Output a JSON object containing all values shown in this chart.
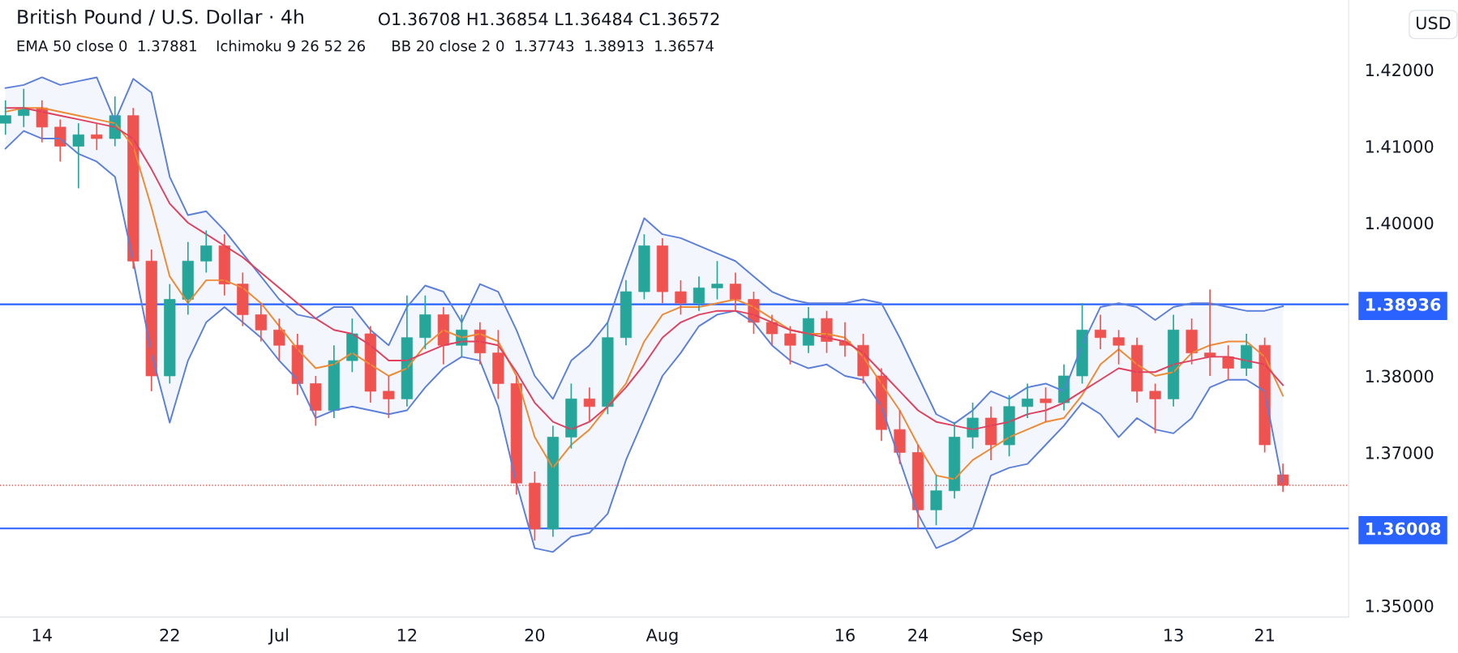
{
  "chart_data": {
    "type": "candlestick",
    "title": "British Pound / U.S. Dollar · 4h",
    "annotations": [
      "O1.36708 H1.36854 L1.36484 C1.36572",
      "EMA 50 close 0  1.37881",
      "Ichimoku 9 26 52 26",
      "BB 20 close 2 0  1.37743  1.38913  1.36574",
      "USD"
    ],
    "categories": [
      null,
      null,
      "14",
      null,
      null,
      null,
      null,
      null,
      null,
      "22",
      null,
      null,
      null,
      null,
      null,
      "Jul",
      null,
      null,
      null,
      null,
      null,
      null,
      "12",
      null,
      null,
      null,
      null,
      null,
      null,
      "20",
      null,
      null,
      null,
      null,
      null,
      null,
      "Aug",
      null,
      null,
      null,
      null,
      null,
      null,
      null,
      null,
      null,
      "16",
      null,
      null,
      null,
      "24",
      null,
      null,
      null,
      null,
      null,
      "Sep",
      null,
      null,
      null,
      null,
      null,
      null,
      null,
      "13",
      null,
      null,
      null,
      null,
      "21",
      null
    ],
    "ohlc": [
      [
        1.413,
        1.416,
        1.4115,
        1.414
      ],
      [
        1.414,
        1.4175,
        1.4125,
        1.415
      ],
      [
        1.415,
        1.416,
        1.4105,
        1.4125
      ],
      [
        1.4125,
        1.4135,
        1.408,
        1.41
      ],
      [
        1.41,
        1.413,
        1.4045,
        1.4115
      ],
      [
        1.4115,
        1.413,
        1.4095,
        1.411
      ],
      [
        1.411,
        1.4165,
        1.41,
        1.414
      ],
      [
        1.414,
        1.415,
        1.394,
        1.395
      ],
      [
        1.395,
        1.3965,
        1.378,
        1.38
      ],
      [
        1.38,
        1.392,
        1.379,
        1.39
      ],
      [
        1.39,
        1.3975,
        1.388,
        1.395
      ],
      [
        1.395,
        1.399,
        1.3935,
        1.397
      ],
      [
        1.397,
        1.3985,
        1.3905,
        1.392
      ],
      [
        1.392,
        1.3935,
        1.3865,
        1.388
      ],
      [
        1.388,
        1.3895,
        1.3845,
        1.386
      ],
      [
        1.386,
        1.3875,
        1.382,
        1.384
      ],
      [
        1.384,
        1.3855,
        1.3775,
        1.379
      ],
      [
        1.379,
        1.38,
        1.3735,
        1.3755
      ],
      [
        1.3755,
        1.384,
        1.3745,
        1.382
      ],
      [
        1.382,
        1.3875,
        1.3805,
        1.3855
      ],
      [
        1.3855,
        1.3865,
        1.3765,
        1.378
      ],
      [
        1.378,
        1.38,
        1.3745,
        1.377
      ],
      [
        1.377,
        1.3905,
        1.376,
        1.385
      ],
      [
        1.385,
        1.3905,
        1.3835,
        1.388
      ],
      [
        1.388,
        1.389,
        1.3815,
        1.384
      ],
      [
        1.384,
        1.388,
        1.3825,
        1.386
      ],
      [
        1.386,
        1.387,
        1.3815,
        1.383
      ],
      [
        1.383,
        1.386,
        1.377,
        1.379
      ],
      [
        1.379,
        1.38,
        1.3645,
        1.366
      ],
      [
        1.366,
        1.3675,
        1.3585,
        1.36
      ],
      [
        1.36,
        1.3735,
        1.359,
        1.372
      ],
      [
        1.372,
        1.379,
        1.3705,
        1.377
      ],
      [
        1.377,
        1.3785,
        1.374,
        1.376
      ],
      [
        1.376,
        1.387,
        1.375,
        1.385
      ],
      [
        1.385,
        1.3925,
        1.384,
        1.391
      ],
      [
        1.391,
        1.3985,
        1.39,
        1.397
      ],
      [
        1.397,
        1.398,
        1.3895,
        1.391
      ],
      [
        1.391,
        1.3925,
        1.388,
        1.3895
      ],
      [
        1.3895,
        1.393,
        1.3885,
        1.3915
      ],
      [
        1.3915,
        1.395,
        1.39,
        1.392
      ],
      [
        1.392,
        1.3935,
        1.3885,
        1.39
      ],
      [
        1.39,
        1.391,
        1.3855,
        1.387
      ],
      [
        1.387,
        1.388,
        1.384,
        1.3855
      ],
      [
        1.3855,
        1.3865,
        1.3815,
        1.384
      ],
      [
        1.384,
        1.389,
        1.383,
        1.3875
      ],
      [
        1.3875,
        1.3885,
        1.383,
        1.3845
      ],
      [
        1.3845,
        1.387,
        1.3825,
        1.384
      ],
      [
        1.384,
        1.3855,
        1.379,
        1.38
      ],
      [
        1.38,
        1.381,
        1.3715,
        1.373
      ],
      [
        1.373,
        1.3755,
        1.3685,
        1.37
      ],
      [
        1.37,
        1.371,
        1.36,
        1.3625
      ],
      [
        1.3625,
        1.367,
        1.3605,
        1.365
      ],
      [
        1.365,
        1.374,
        1.364,
        1.372
      ],
      [
        1.372,
        1.3765,
        1.3705,
        1.3745
      ],
      [
        1.3745,
        1.376,
        1.369,
        1.371
      ],
      [
        1.371,
        1.3775,
        1.3695,
        1.376
      ],
      [
        1.376,
        1.379,
        1.3745,
        1.377
      ],
      [
        1.377,
        1.3785,
        1.374,
        1.3765
      ],
      [
        1.3765,
        1.3815,
        1.3755,
        1.38
      ],
      [
        1.38,
        1.3895,
        1.379,
        1.386
      ],
      [
        1.386,
        1.388,
        1.3835,
        1.385
      ],
      [
        1.385,
        1.386,
        1.3815,
        1.384
      ],
      [
        1.384,
        1.385,
        1.3765,
        1.378
      ],
      [
        1.378,
        1.379,
        1.3725,
        1.377
      ],
      [
        1.377,
        1.388,
        1.376,
        1.386
      ],
      [
        1.386,
        1.3875,
        1.3815,
        1.383
      ],
      [
        1.383,
        1.3913,
        1.38,
        1.3825
      ],
      [
        1.3825,
        1.384,
        1.3795,
        1.381
      ],
      [
        1.381,
        1.3855,
        1.38,
        1.384
      ],
      [
        1.384,
        1.385,
        1.37,
        1.371
      ],
      [
        1.36708,
        1.36854,
        1.36484,
        1.36572
      ]
    ],
    "colors": [
      "#26a69a",
      "#26a69a",
      "#ef5350",
      "#ef5350",
      "#26a69a",
      "#ef5350",
      "#26a69a",
      "#ef5350",
      "#ef5350",
      "#26a69a",
      "#26a69a",
      "#26a69a",
      "#ef5350",
      "#ef5350",
      "#ef5350",
      "#ef5350",
      "#ef5350",
      "#ef5350",
      "#26a69a",
      "#26a69a",
      "#ef5350",
      "#ef5350",
      "#26a69a",
      "#26a69a",
      "#ef5350",
      "#26a69a",
      "#ef5350",
      "#ef5350",
      "#ef5350",
      "#ef5350",
      "#26a69a",
      "#26a69a",
      "#ef5350",
      "#26a69a",
      "#26a69a",
      "#26a69a",
      "#ef5350",
      "#ef5350",
      "#26a69a",
      "#26a69a",
      "#ef5350",
      "#ef5350",
      "#ef5350",
      "#ef5350",
      "#26a69a",
      "#ef5350",
      "#ef5350",
      "#ef5350",
      "#ef5350",
      "#ef5350",
      "#ef5350",
      "#26a69a",
      "#26a69a",
      "#26a69a",
      "#ef5350",
      "#26a69a",
      "#26a69a",
      "#ef5350",
      "#26a69a",
      "#26a69a",
      "#ef5350",
      "#ef5350",
      "#ef5350",
      "#ef5350",
      "#26a69a",
      "#ef5350",
      "#ef5350",
      "#ef5350",
      "#26a69a",
      "#ef5350",
      "#ef5350"
    ],
    "series": [
      {
        "type": "line",
        "color": "#5b7fdb",
        "values": [
          1.4176,
          1.418,
          1.419,
          1.418,
          1.4185,
          1.419,
          1.4133,
          1.4188,
          1.417,
          1.406,
          1.401,
          1.4015,
          1.399,
          1.396,
          1.393,
          1.39,
          1.388,
          1.3875,
          1.389,
          1.389,
          1.386,
          1.384,
          1.389,
          1.3918,
          1.391,
          1.387,
          1.392,
          1.391,
          1.386,
          1.38,
          1.377,
          1.382,
          1.384,
          1.387,
          1.394,
          1.4006,
          1.3985,
          1.398,
          1.397,
          1.396,
          1.395,
          1.393,
          1.391,
          1.39,
          1.3895,
          1.3895,
          1.3895,
          1.39,
          1.3895,
          1.385,
          1.38,
          1.375,
          1.3738,
          1.3755,
          1.378,
          1.377,
          1.3785,
          1.379,
          1.378,
          1.384,
          1.389,
          1.3895,
          1.389,
          1.3873,
          1.389,
          1.3895,
          1.3895,
          1.389,
          1.3885,
          1.3885,
          1.3891
        ]
      },
      {
        "type": "line",
        "color": "#5b7fdb",
        "values": [
          1.4097,
          1.412,
          1.411,
          1.411,
          1.409,
          1.408,
          1.406,
          1.395,
          1.383,
          1.3739,
          1.382,
          1.387,
          1.389,
          1.387,
          1.385,
          1.382,
          1.3795,
          1.3745,
          1.3755,
          1.376,
          1.3755,
          1.375,
          1.3755,
          1.3785,
          1.381,
          1.3825,
          1.382,
          1.376,
          1.366,
          1.3575,
          1.357,
          1.359,
          1.3595,
          1.362,
          1.369,
          1.3745,
          1.38,
          1.383,
          1.3865,
          1.388,
          1.3885,
          1.387,
          1.384,
          1.382,
          1.381,
          1.3815,
          1.38,
          1.3795,
          1.376,
          1.369,
          1.362,
          1.3575,
          1.3585,
          1.36,
          1.367,
          1.368,
          1.3685,
          1.371,
          1.3735,
          1.3765,
          1.375,
          1.372,
          1.3745,
          1.373,
          1.3725,
          1.3745,
          1.3785,
          1.3795,
          1.3795,
          1.378,
          1.3657
        ]
      },
      {
        "type": "line",
        "color": "#ef8a34",
        "values": [
          1.4145,
          1.415,
          1.415,
          1.4145,
          1.414,
          1.4135,
          1.413,
          1.41,
          1.402,
          1.393,
          1.3895,
          1.3925,
          1.3925,
          1.3915,
          1.3895,
          1.3865,
          1.3835,
          1.381,
          1.3815,
          1.383,
          1.3815,
          1.38,
          1.381,
          1.384,
          1.386,
          1.385,
          1.3855,
          1.3845,
          1.38,
          1.372,
          1.368,
          1.371,
          1.373,
          1.376,
          1.379,
          1.3845,
          1.388,
          1.389,
          1.389,
          1.3895,
          1.39,
          1.389,
          1.3875,
          1.386,
          1.3855,
          1.3855,
          1.385,
          1.3825,
          1.379,
          1.3755,
          1.371,
          1.367,
          1.3665,
          1.369,
          1.3705,
          1.372,
          1.373,
          1.374,
          1.3745,
          1.3775,
          1.3815,
          1.3835,
          1.3815,
          1.38,
          1.3805,
          1.383,
          1.384,
          1.3845,
          1.3845,
          1.3825,
          1.3774
        ],
        "lower": [
          1.4097,
          1.412,
          1.411,
          1.411,
          1.409,
          1.408,
          1.406,
          1.395,
          1.383,
          1.3739,
          1.382,
          1.387,
          1.389,
          1.387,
          1.385,
          1.382,
          1.3795,
          1.3745,
          1.3755,
          1.376,
          1.3755,
          1.375,
          1.3755,
          1.3785,
          1.381,
          1.3825,
          1.382,
          1.376,
          1.366,
          1.3575,
          1.357,
          1.359,
          1.3595,
          1.362,
          1.369,
          1.3745,
          1.38,
          1.383,
          1.3865,
          1.388,
          1.3885,
          1.387,
          1.384,
          1.382,
          1.381,
          1.3815,
          1.38,
          1.3795,
          1.376,
          1.369,
          1.362,
          1.3575,
          1.3585,
          1.36,
          1.367,
          1.368,
          1.3685,
          1.371,
          1.3735,
          1.3765,
          1.375,
          1.372,
          1.3745,
          1.373,
          1.3725,
          1.3745,
          1.3785,
          1.3795,
          1.3795,
          1.378,
          1.3657
        ],
        "upper": [
          1.4176,
          1.418,
          1.419,
          1.418,
          1.4185,
          1.419,
          1.4133,
          1.4188,
          1.417,
          1.406,
          1.401,
          1.4015,
          1.399,
          1.396,
          1.393,
          1.39,
          1.388,
          1.3875,
          1.389,
          1.389,
          1.386,
          1.384,
          1.389,
          1.3918,
          1.391,
          1.387,
          1.392,
          1.391,
          1.386,
          1.38,
          1.377,
          1.382,
          1.384,
          1.387,
          1.394,
          1.4006,
          1.3985,
          1.398,
          1.397,
          1.396,
          1.395,
          1.393,
          1.391,
          1.39,
          1.3895,
          1.3895,
          1.3895,
          1.39,
          1.3895,
          1.385,
          1.38,
          1.375,
          1.3738,
          1.3755,
          1.378,
          1.377,
          1.3785,
          1.379,
          1.378,
          1.384,
          1.389,
          1.3895,
          1.389,
          1.3873,
          1.389,
          1.3895,
          1.3895,
          1.389,
          1.3885,
          1.3885,
          1.3891
        ]
      },
      {
        "type": "line",
        "color": "#e0405e",
        "values": [
          1.415,
          1.415,
          1.4145,
          1.414,
          1.4135,
          1.413,
          1.4125,
          1.411,
          1.407,
          1.4025,
          1.4,
          1.3985,
          1.397,
          1.3955,
          1.3935,
          1.3915,
          1.3895,
          1.3875,
          1.386,
          1.3855,
          1.384,
          1.382,
          1.382,
          1.383,
          1.384,
          1.3845,
          1.3845,
          1.384,
          1.3805,
          1.3765,
          1.374,
          1.373,
          1.374,
          1.376,
          1.3785,
          1.3815,
          1.385,
          1.387,
          1.388,
          1.3885,
          1.3885,
          1.388,
          1.387,
          1.386,
          1.3855,
          1.385,
          1.3845,
          1.383,
          1.3805,
          1.378,
          1.3755,
          1.374,
          1.3735,
          1.373,
          1.3735,
          1.374,
          1.375,
          1.3755,
          1.3765,
          1.378,
          1.3795,
          1.381,
          1.3805,
          1.3805,
          1.3815,
          1.382,
          1.3825,
          1.3825,
          1.382,
          1.3815,
          1.3788
        ]
      }
    ],
    "ylim": [
      1.3485,
      1.4291
    ],
    "yticks": [
      {
        "value": 1.35,
        "label": "1.35000"
      },
      {
        "value": 1.37,
        "label": "1.37000"
      },
      {
        "value": 1.38,
        "label": "1.38000"
      },
      {
        "value": 1.4,
        "label": "1.40000"
      },
      {
        "value": 1.41,
        "label": "1.41000"
      },
      {
        "value": 1.42,
        "label": "1.42000"
      },
      {
        "value": 1.36008,
        "label": "1.36008"
      },
      {
        "value": 1.38936,
        "label": "1.38936"
      }
    ],
    "ref_lines": [
      {
        "axis": "y",
        "value": 1.38936,
        "color": "#2962ff",
        "line_style": "solid"
      },
      {
        "axis": "y",
        "value": 1.36008,
        "color": "#2962ff",
        "line_style": "solid"
      },
      {
        "axis": "y",
        "value": 1.36572,
        "color": "#ef5350",
        "line_style": "dotted"
      }
    ]
  }
}
